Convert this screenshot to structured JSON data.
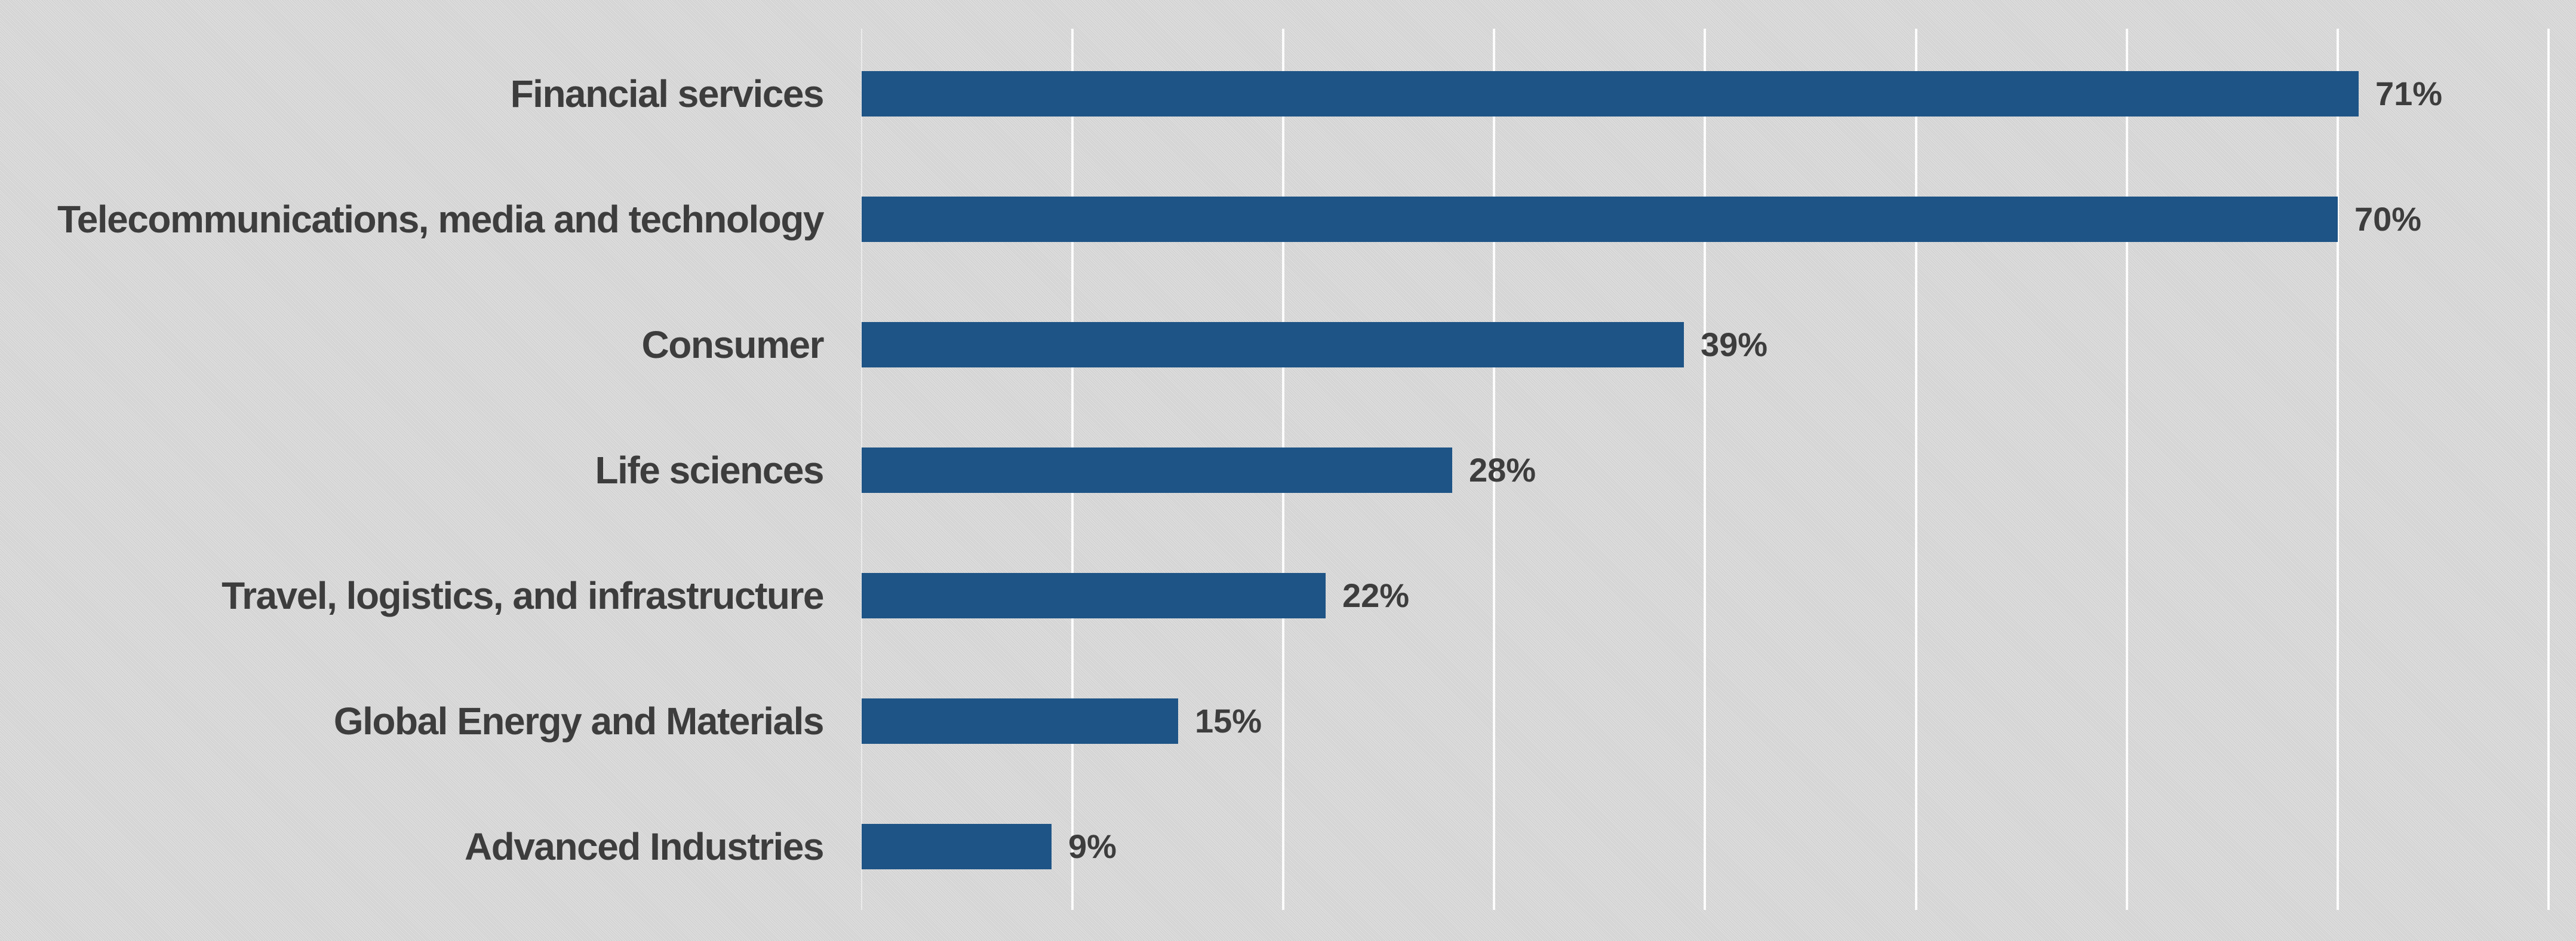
{
  "chart_data": {
    "type": "bar",
    "orientation": "horizontal",
    "title": "",
    "xlabel": "",
    "ylabel": "",
    "categories": [
      "Financial services",
      "Telecommunications, media and technology",
      "Consumer",
      "Life sciences",
      "Travel, logistics, and infrastructure",
      "Global Energy and Materials",
      "Advanced Industries"
    ],
    "values": [
      71,
      70,
      39,
      28,
      22,
      15,
      9
    ],
    "value_labels": [
      "71%",
      "70%",
      "39%",
      "28%",
      "22%",
      "15%",
      "9%"
    ],
    "unit": "%",
    "xlim": [
      0,
      80
    ],
    "gridlines_pct": [
      0,
      10,
      20,
      30,
      40,
      50,
      60,
      70,
      80
    ],
    "grid": true,
    "legend": false,
    "axis_tick_labels_visible": false,
    "colors": {
      "bar": "#1e5486",
      "background": "#d7d7d7",
      "gridline": "#fcfcfc",
      "text": "#3d3d3d"
    }
  }
}
